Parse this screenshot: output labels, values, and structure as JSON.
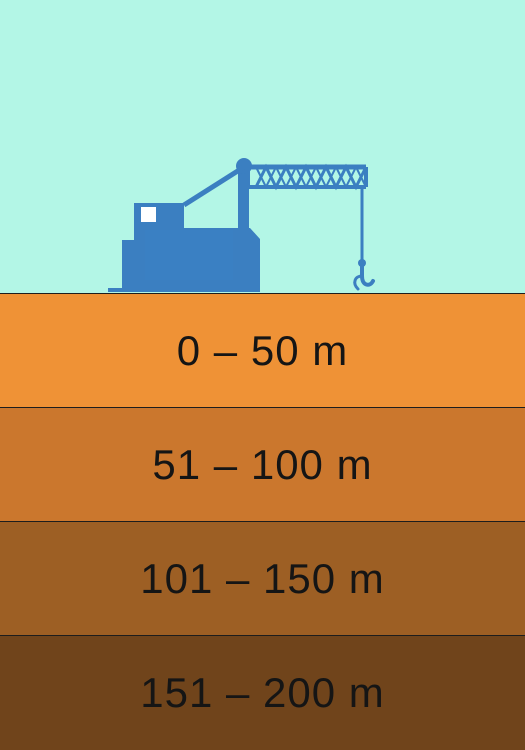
{
  "scene": {
    "icon": "crane-icon",
    "colors": {
      "sky": "#b3f6e6",
      "crane": "#3b7fc1",
      "window": "#ffffff"
    }
  },
  "depth_layers": [
    {
      "label": "0 – 50 m",
      "color": "#ef9236"
    },
    {
      "label": "51 – 100 m",
      "color": "#cb772d"
    },
    {
      "label": "101 – 150 m",
      "color": "#9d5f24"
    },
    {
      "label": "151 – 200 m",
      "color": "#70441b"
    }
  ]
}
